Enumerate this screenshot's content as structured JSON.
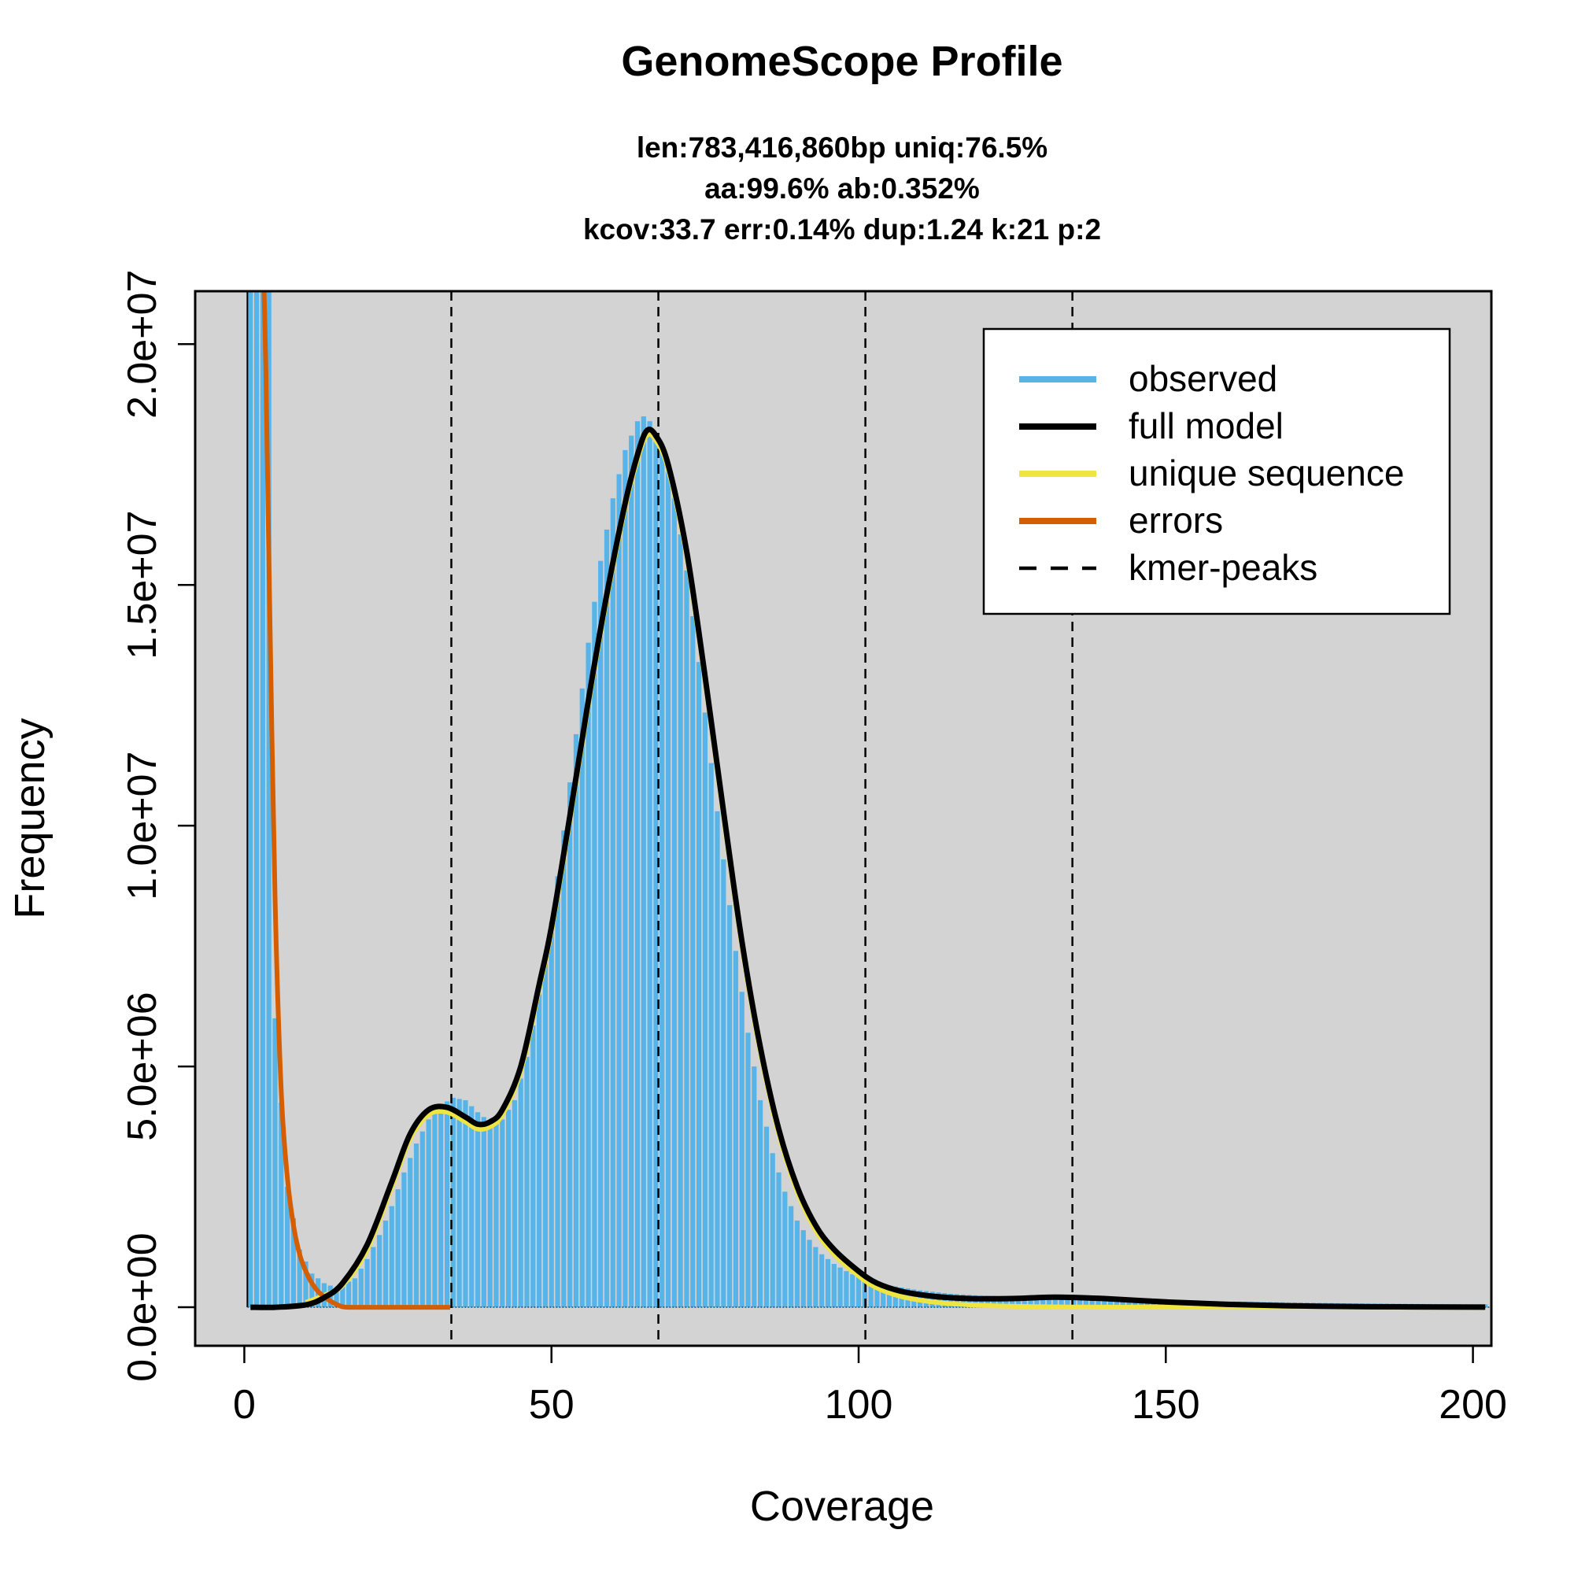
{
  "chart_data": {
    "type": "bar",
    "title": "GenomeScope Profile",
    "subtitle_lines": [
      "len:783,416,860bp uniq:76.5%",
      "aa:99.6% ab:0.352%",
      "kcov:33.7 err:0.14%  dup:1.24  k:21 p:2"
    ],
    "xlabel": "Coverage",
    "ylabel": "Frequency",
    "xlim": [
      -8,
      203
    ],
    "ylim": [
      -800000,
      21100000
    ],
    "x_ticks": [
      0,
      50,
      100,
      150,
      200
    ],
    "x_tick_labels": [
      "0",
      "50",
      "100",
      "150",
      "200"
    ],
    "y_ticks": [
      0,
      5000000,
      10000000,
      15000000,
      20000000
    ],
    "y_tick_labels": [
      "0.0e+00",
      "5.0e+06",
      "1.0e+07",
      "1.5e+07",
      "2.0e+07"
    ],
    "kmer_peaks": [
      33.7,
      67.4,
      101.1,
      134.8
    ],
    "colors": {
      "observed": "#56b4e9",
      "full_model": "#000000",
      "unique_sequence": "#f0e442",
      "errors": "#d55e00",
      "panel": "#d3d3d3"
    },
    "observed": {
      "anchors_x": [
        1,
        3,
        5,
        7,
        9,
        11,
        13,
        15,
        18,
        20,
        22,
        24,
        26,
        28,
        30,
        32,
        34,
        36,
        38,
        40,
        42,
        44,
        46,
        48,
        50,
        52,
        54,
        56,
        58,
        60,
        62,
        64,
        65,
        66,
        68,
        70,
        72,
        74,
        76,
        78,
        80,
        82,
        84,
        86,
        88,
        90,
        92,
        94,
        96,
        98,
        100,
        105,
        110,
        115,
        120,
        130,
        140,
        150,
        160,
        170,
        180,
        190,
        200,
        202
      ],
      "anchors_y": [
        40000000,
        40000000,
        6000000,
        2500000,
        1200000,
        700000,
        500000,
        400000,
        600000,
        1000000,
        1500000,
        2100000,
        2800000,
        3400000,
        3900000,
        4200000,
        4350000,
        4300000,
        4050000,
        3850000,
        3900000,
        4300000,
        5200000,
        6500000,
        8000000,
        9900000,
        11900000,
        13800000,
        15500000,
        16800000,
        17800000,
        18400000,
        18500000,
        18400000,
        17900000,
        16800000,
        15300000,
        13400000,
        11300000,
        9300000,
        7400000,
        5700000,
        4300000,
        3200000,
        2400000,
        1800000,
        1400000,
        1100000,
        900000,
        750000,
        620000,
        450000,
        350000,
        280000,
        240000,
        210000,
        180000,
        150000,
        120000,
        100000,
        80000,
        70000,
        60000,
        60000
      ]
    },
    "full_model": {
      "x": [
        1,
        5,
        10,
        13,
        16,
        20,
        24,
        27,
        30,
        33,
        36,
        38,
        40,
        42,
        45,
        48,
        50,
        53,
        56,
        59,
        62,
        64,
        65.5,
        67,
        69,
        72,
        75,
        78,
        81,
        84,
        87,
        90,
        93,
        96,
        100,
        103,
        107,
        112,
        118,
        125,
        132,
        140,
        150,
        160,
        170,
        180,
        190,
        202
      ],
      "y": [
        0,
        0,
        50000,
        200000,
        500000,
        1300000,
        2600000,
        3600000,
        4100000,
        4150000,
        3950000,
        3800000,
        3850000,
        4100000,
        5000000,
        6700000,
        7900000,
        10200000,
        12600000,
        14800000,
        16700000,
        17700000,
        18200000,
        18100000,
        17500000,
        15700000,
        13100000,
        10300000,
        7600000,
        5400000,
        3700000,
        2500000,
        1700000,
        1200000,
        750000,
        500000,
        330000,
        230000,
        180000,
        180000,
        210000,
        180000,
        110000,
        60000,
        30000,
        15000,
        8000,
        3000
      ]
    },
    "unique_sequence": {
      "x": [
        10,
        13,
        16,
        20,
        24,
        27,
        30,
        33,
        36,
        38,
        40,
        42,
        45,
        48,
        50,
        53,
        56,
        59,
        62,
        64,
        65.5,
        67,
        69,
        72,
        75,
        78,
        81,
        84,
        87,
        90,
        93,
        96,
        100,
        103,
        107,
        112,
        118,
        125,
        132,
        140,
        150,
        160,
        170,
        180,
        190,
        202
      ],
      "y": [
        100000,
        250000,
        450000,
        1200000,
        2500000,
        3500000,
        4000000,
        4050000,
        3850000,
        3700000,
        3750000,
        4000000,
        4900000,
        6600000,
        7800000,
        10100000,
        12500000,
        14700000,
        16600000,
        17600000,
        18100000,
        18000000,
        17400000,
        15600000,
        13000000,
        10200000,
        7500000,
        5300000,
        3600000,
        2400000,
        1600000,
        1100000,
        650000,
        400000,
        220000,
        110000,
        50000,
        20000,
        8000,
        3000,
        1000,
        0,
        0,
        0,
        0,
        0
      ]
    },
    "errors": {
      "x": [
        3.2,
        3.5,
        4,
        5,
        6,
        7,
        8,
        9,
        10,
        11,
        12,
        13,
        14,
        15,
        16,
        17,
        20,
        25,
        30,
        33.5
      ],
      "y": [
        21200000,
        19500000,
        15500000,
        8500000,
        4500000,
        2700000,
        1700000,
        1100000,
        750000,
        500000,
        330000,
        220000,
        130000,
        60000,
        10000,
        0,
        0,
        0,
        0,
        0
      ]
    },
    "legend": {
      "position": "top-right",
      "entries": [
        "observed",
        "full model",
        "unique sequence",
        "errors",
        "kmer-peaks"
      ]
    }
  }
}
